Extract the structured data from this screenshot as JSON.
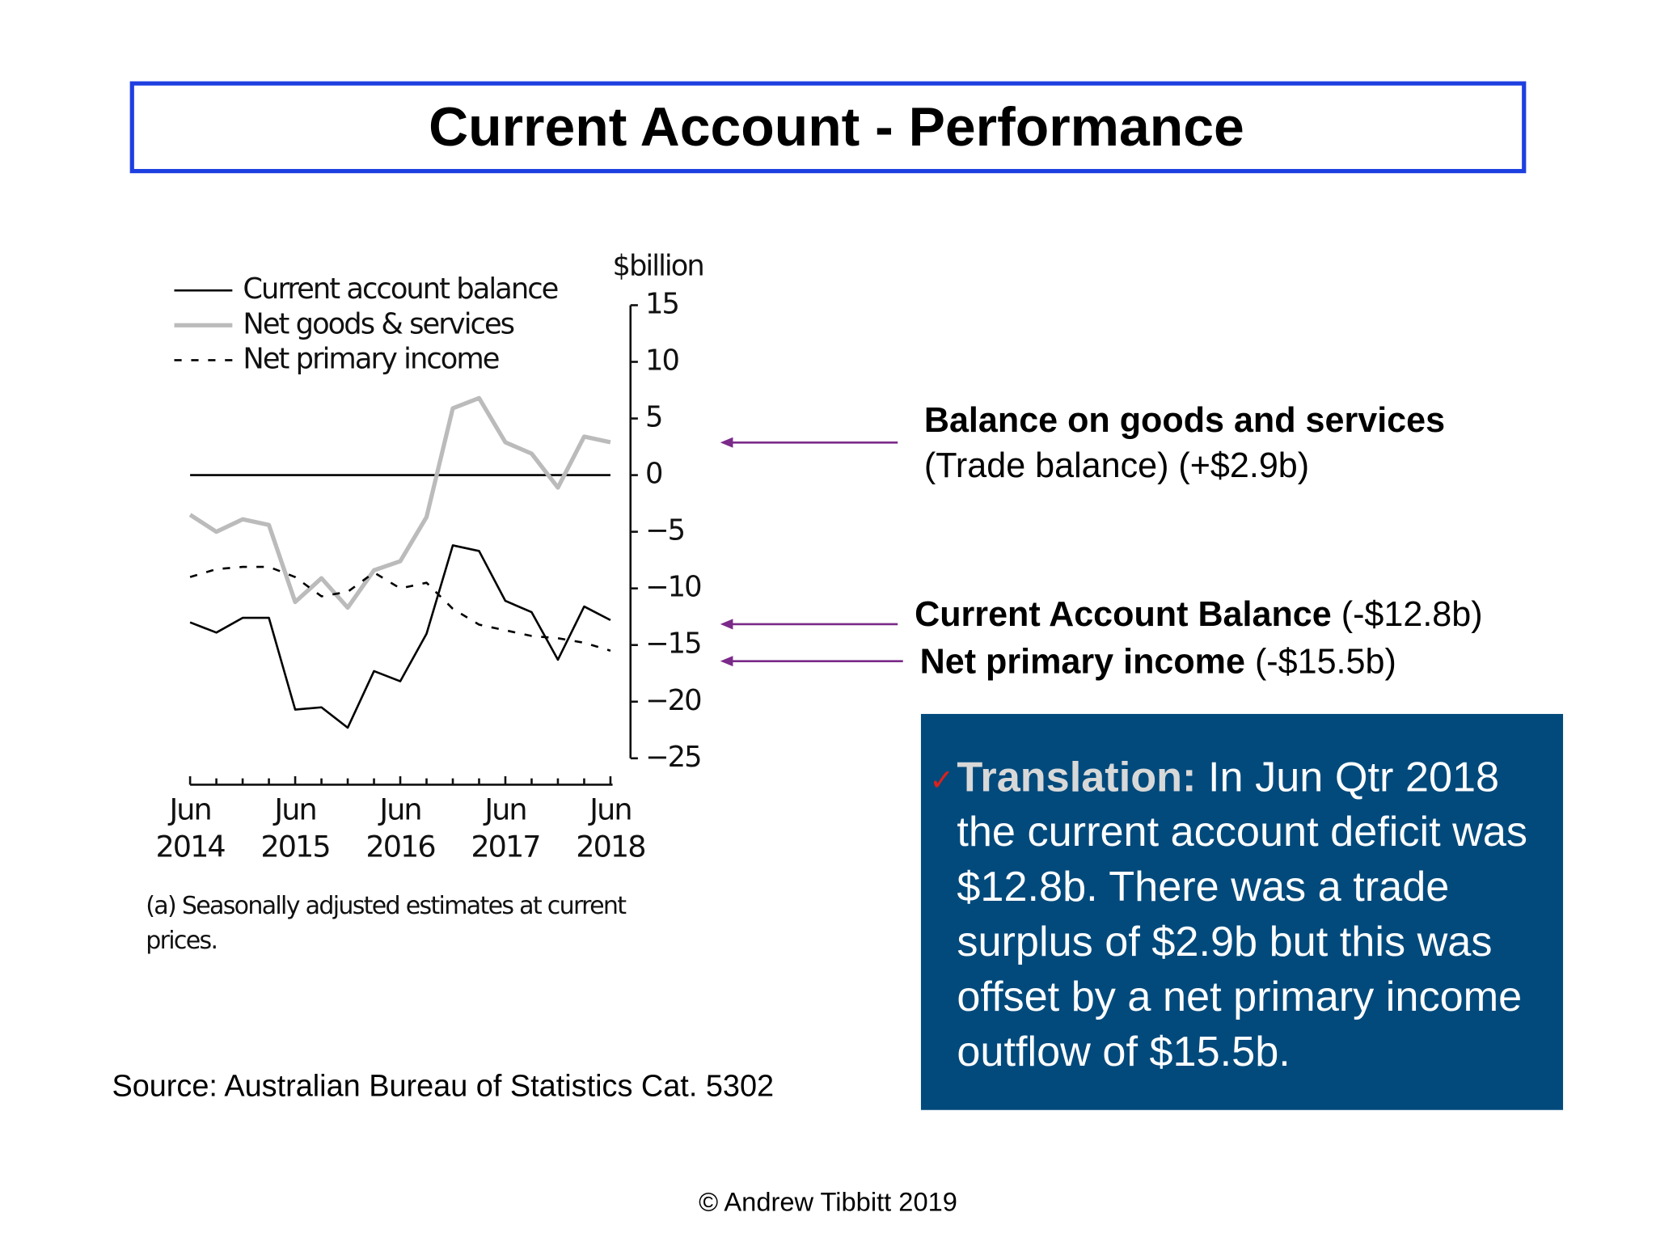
{
  "slide": {
    "title": "Current Account - Performance",
    "annotations": [
      {
        "bold": "Balance on goods and services",
        "text": "(Trade balance) (+$2.9b)"
      },
      {
        "bold": "Current Account Balance",
        "text": "(-$12.8b)"
      },
      {
        "bold": "Net primary income",
        "text": "(-$15.5b)"
      }
    ],
    "translation": {
      "label": "Translation:",
      "text": "In Jun Qtr 2018 the current account deficit was $12.8b. There was a trade surplus of $2.9b but this was offset by a net primary income outflow of $15.5b."
    },
    "source": "Source: Australian Bureau of Statistics Cat. 5302",
    "copyright": "© Andrew Tibbitt 2019"
  },
  "chart_data": {
    "type": "line",
    "ylabel": "$billion",
    "footnote": "(a) Seasonally adjusted estimates at current prices.",
    "categories": [
      "Jun 2014",
      null,
      null,
      null,
      "Jun 2015",
      null,
      null,
      null,
      "Jun 2016",
      null,
      null,
      null,
      "Jun 2017",
      null,
      null,
      null,
      "Jun 2018"
    ],
    "series": [
      {
        "name": "Current account balance",
        "color": "#000000",
        "style": "solid",
        "width": 2,
        "values": [
          -13,
          -13.9,
          -12.6,
          -12.6,
          -20.7,
          -20.5,
          -22.3,
          -17.3,
          -18.2,
          -14,
          -6.2,
          -6.7,
          -11.1,
          -12.1,
          -16.3,
          -11.6,
          -12.8
        ]
      },
      {
        "name": "Net goods & services",
        "color": "#bbbbbb",
        "style": "solid",
        "width": 4,
        "values": [
          -3.5,
          -5,
          -3.9,
          -4.4,
          -11.2,
          -9.1,
          -11.7,
          -8.4,
          -7.6,
          -3.7,
          5.9,
          6.8,
          2.9,
          1.9,
          -1.1,
          3.4,
          2.9
        ]
      },
      {
        "name": "Net primary income",
        "color": "#000000",
        "style": "dashed",
        "width": 2,
        "values": [
          -9,
          -8.3,
          -8.1,
          -8.1,
          -9,
          -10.7,
          -10.3,
          -8.6,
          -10,
          -9.5,
          -11.8,
          -13.2,
          -13.7,
          -14.2,
          -14.4,
          -14.8,
          -15.5
        ]
      }
    ],
    "ylim": [
      -25,
      15
    ],
    "yticks": [
      15,
      10,
      5,
      0,
      {
        "value": -5,
        "label": "−5"
      },
      {
        "value": -10,
        "label": "−10"
      },
      {
        "value": -15,
        "label": "−15"
      },
      {
        "value": -20,
        "label": "−20"
      },
      {
        "value": -25,
        "label": "−25"
      }
    ],
    "y_axis_side": "right",
    "zero_line": true,
    "legend": "upper left"
  }
}
